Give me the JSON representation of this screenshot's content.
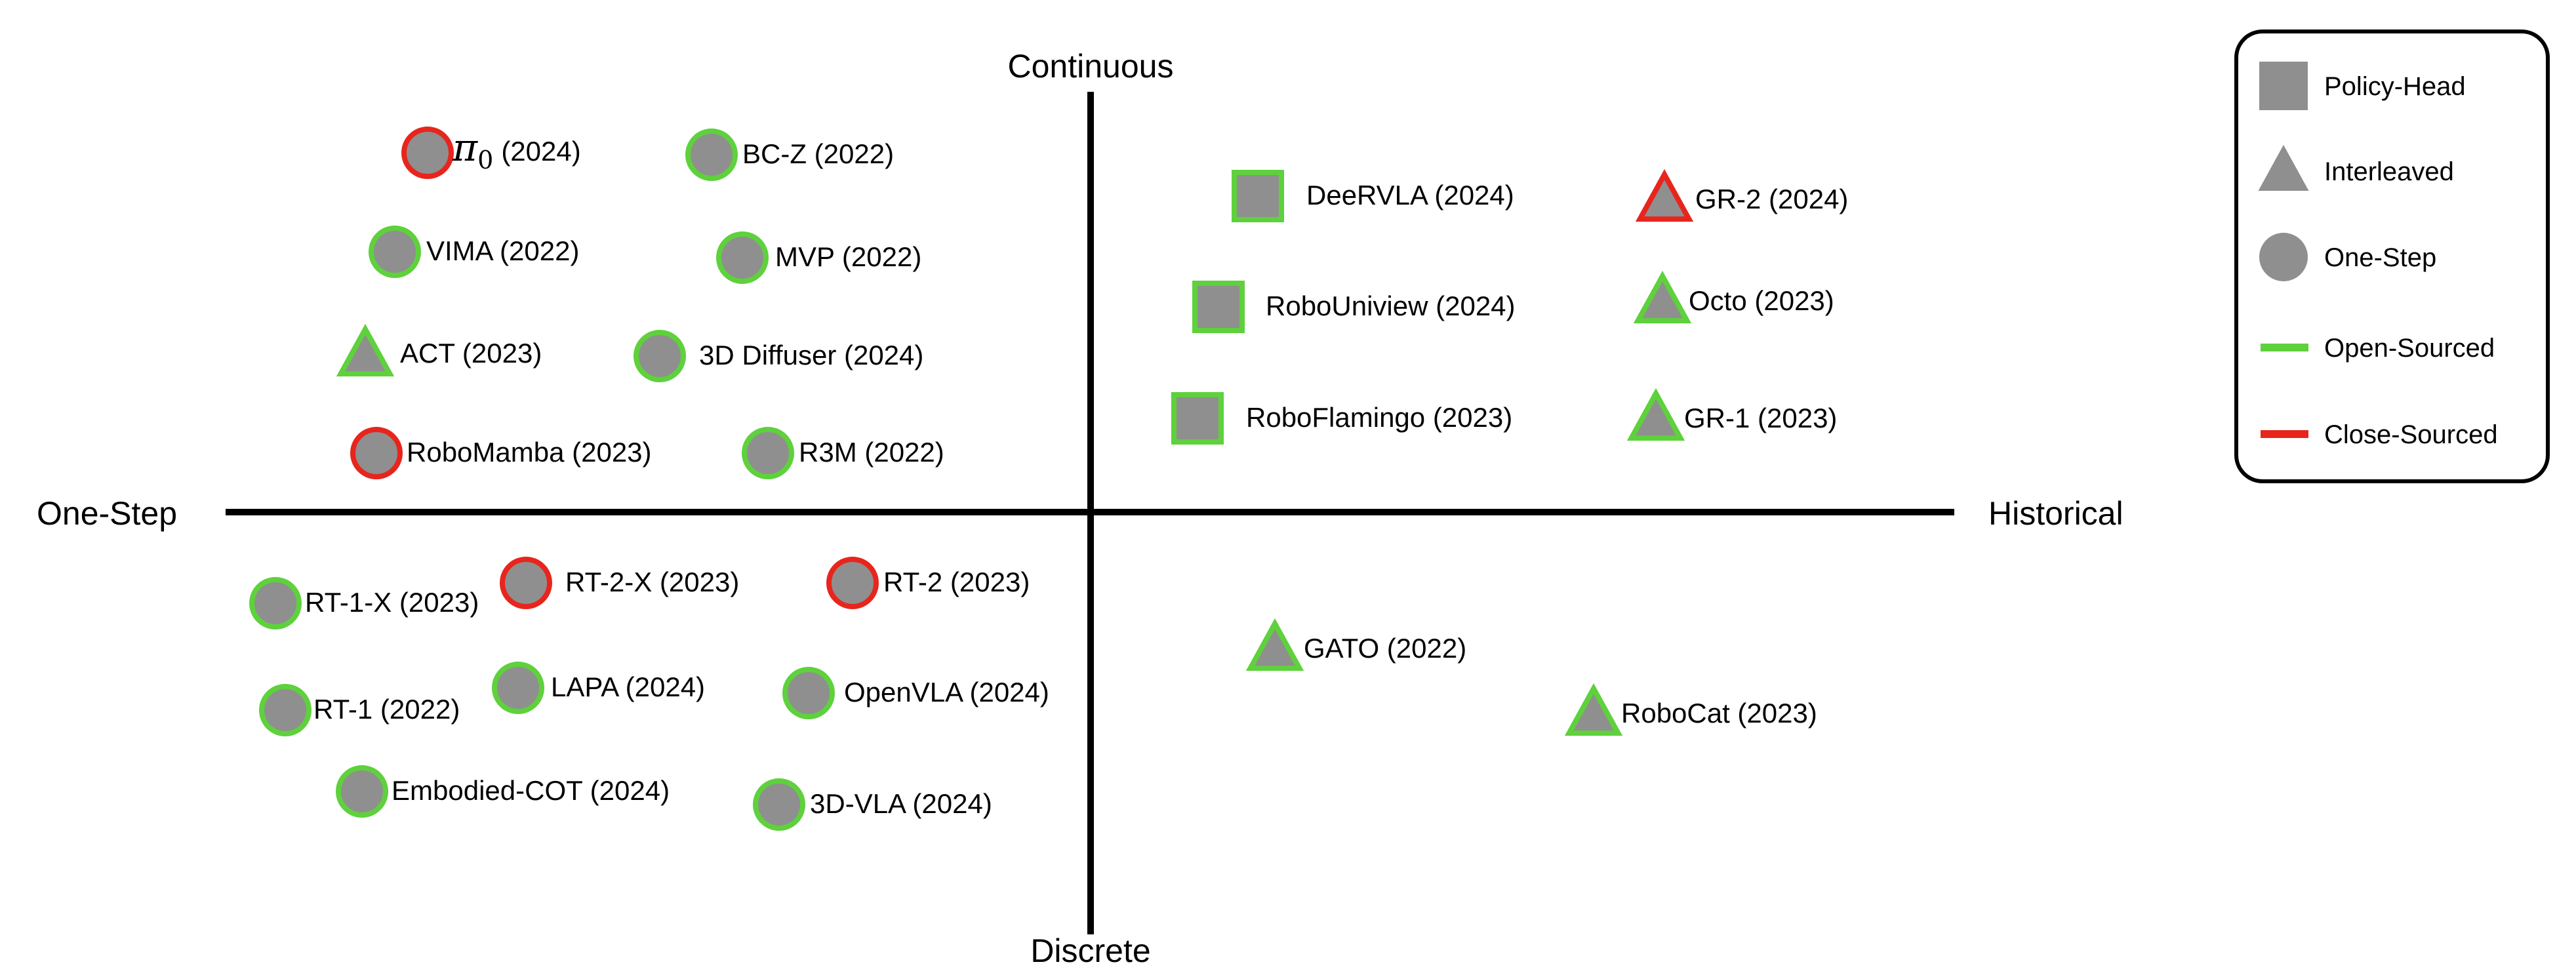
{
  "axes": {
    "top": "Continuous",
    "bottom": "Discrete",
    "left": "One-Step",
    "right": "Historical"
  },
  "colors": {
    "fill": "#8f8f8f",
    "open": "#5ed13c",
    "closed": "#e8251d",
    "axis": "#000000"
  },
  "legend": {
    "items": [
      {
        "shape": "square",
        "label": "Policy-Head"
      },
      {
        "shape": "triangle",
        "label": "Interleaved"
      },
      {
        "shape": "circle",
        "label": "One-Step"
      },
      {
        "shape": "line-open",
        "label": "Open-Sourced"
      },
      {
        "shape": "line-closed",
        "label": "Close-Sourced"
      }
    ]
  },
  "models": [
    {
      "id": "pi0",
      "name": "π0",
      "label": "π0 (2024)",
      "year": "(2024)",
      "shape": "circle",
      "source": "closed",
      "special": "pi"
    },
    {
      "id": "bcz",
      "label": "BC-Z (2022)",
      "shape": "circle",
      "source": "open"
    },
    {
      "id": "vima",
      "label": "VIMA (2022)",
      "shape": "circle",
      "source": "open"
    },
    {
      "id": "mvp",
      "label": "MVP (2022)",
      "shape": "circle",
      "source": "open"
    },
    {
      "id": "act",
      "label": "ACT (2023)",
      "shape": "triangle",
      "source": "open"
    },
    {
      "id": "3ddiffuser",
      "label": "3D Diffuser (2024)",
      "shape": "circle",
      "source": "open"
    },
    {
      "id": "robomamba",
      "label": "RoboMamba (2023)",
      "shape": "circle",
      "source": "closed"
    },
    {
      "id": "r3m",
      "label": "R3M (2022)",
      "shape": "circle",
      "source": "open"
    },
    {
      "id": "deervla",
      "label": "DeeRVLA (2024)",
      "shape": "square",
      "source": "open"
    },
    {
      "id": "gr2",
      "label": "GR-2 (2024)",
      "shape": "triangle",
      "source": "closed"
    },
    {
      "id": "robouniview",
      "label": "RoboUniview (2024)",
      "shape": "square",
      "source": "open"
    },
    {
      "id": "octo",
      "label": "Octo (2023)",
      "shape": "triangle",
      "source": "open"
    },
    {
      "id": "roboflamingo",
      "label": "RoboFlamingo (2023)",
      "shape": "square",
      "source": "open"
    },
    {
      "id": "gr1",
      "label": "GR-1 (2023)",
      "shape": "triangle",
      "source": "open"
    },
    {
      "id": "rt1x",
      "label": "RT-1-X (2023)",
      "shape": "circle",
      "source": "open"
    },
    {
      "id": "rt2x",
      "label": "RT-2-X (2023)",
      "shape": "circle",
      "source": "closed"
    },
    {
      "id": "rt2",
      "label": "RT-2 (2023)",
      "shape": "circle",
      "source": "closed"
    },
    {
      "id": "rt1",
      "label": "RT-1 (2022)",
      "shape": "circle",
      "source": "open"
    },
    {
      "id": "lapa",
      "label": "LAPA (2024)",
      "shape": "circle",
      "source": "open"
    },
    {
      "id": "openvla",
      "label": "OpenVLA (2024)",
      "shape": "circle",
      "source": "open"
    },
    {
      "id": "embodiedcot",
      "label": "Embodied-COT (2024)",
      "shape": "circle",
      "source": "open"
    },
    {
      "id": "3dvla",
      "label": "3D-VLA (2024)",
      "shape": "circle",
      "source": "open"
    },
    {
      "id": "gato",
      "label": "GATO (2022)",
      "shape": "triangle",
      "source": "open"
    },
    {
      "id": "robocat",
      "label": "RoboCat (2023)",
      "shape": "triangle",
      "source": "open"
    }
  ]
}
